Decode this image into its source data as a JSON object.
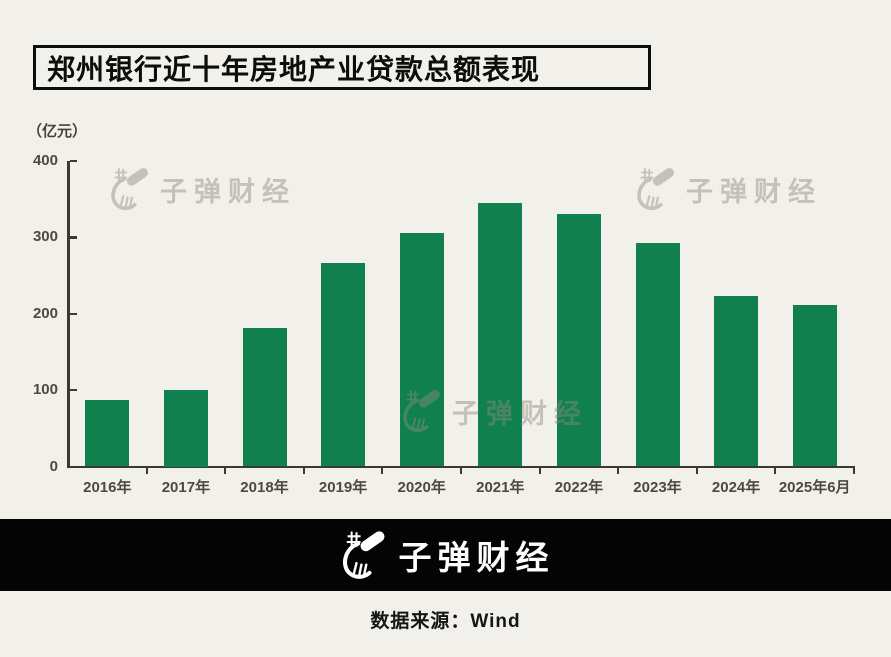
{
  "title": {
    "text": "郑州银行近十年房地产业贷款总额表现"
  },
  "watermark": {
    "text": "子弹财经"
  },
  "footer": {
    "logo_text": "子弹财经",
    "source_label": "数据来源：Wind"
  },
  "colors": {
    "background": "#f2f0ea",
    "bar": "#10804f",
    "axis": "#3a3a33",
    "footer_background": "#040404",
    "footer_text": "#ffffff",
    "watermark": "#c9c6bf"
  },
  "chart_data": {
    "type": "bar",
    "title": "郑州银行近十年房地产业贷款总额表现",
    "categories": [
      "2016年",
      "2017年",
      "2018年",
      "2019年",
      "2020年",
      "2021年",
      "2022年",
      "2023年",
      "2024年",
      "2025年6月"
    ],
    "values": [
      87,
      100,
      181,
      267,
      306,
      345,
      330,
      292,
      223,
      211
    ],
    "unit_label": "（亿元）",
    "xlabel": "",
    "ylabel": "（亿元）",
    "ylim": [
      0,
      400
    ],
    "yticks": [
      0,
      100,
      200,
      300,
      400
    ],
    "grid": false,
    "legend": false,
    "bar_color": "#10804f"
  }
}
